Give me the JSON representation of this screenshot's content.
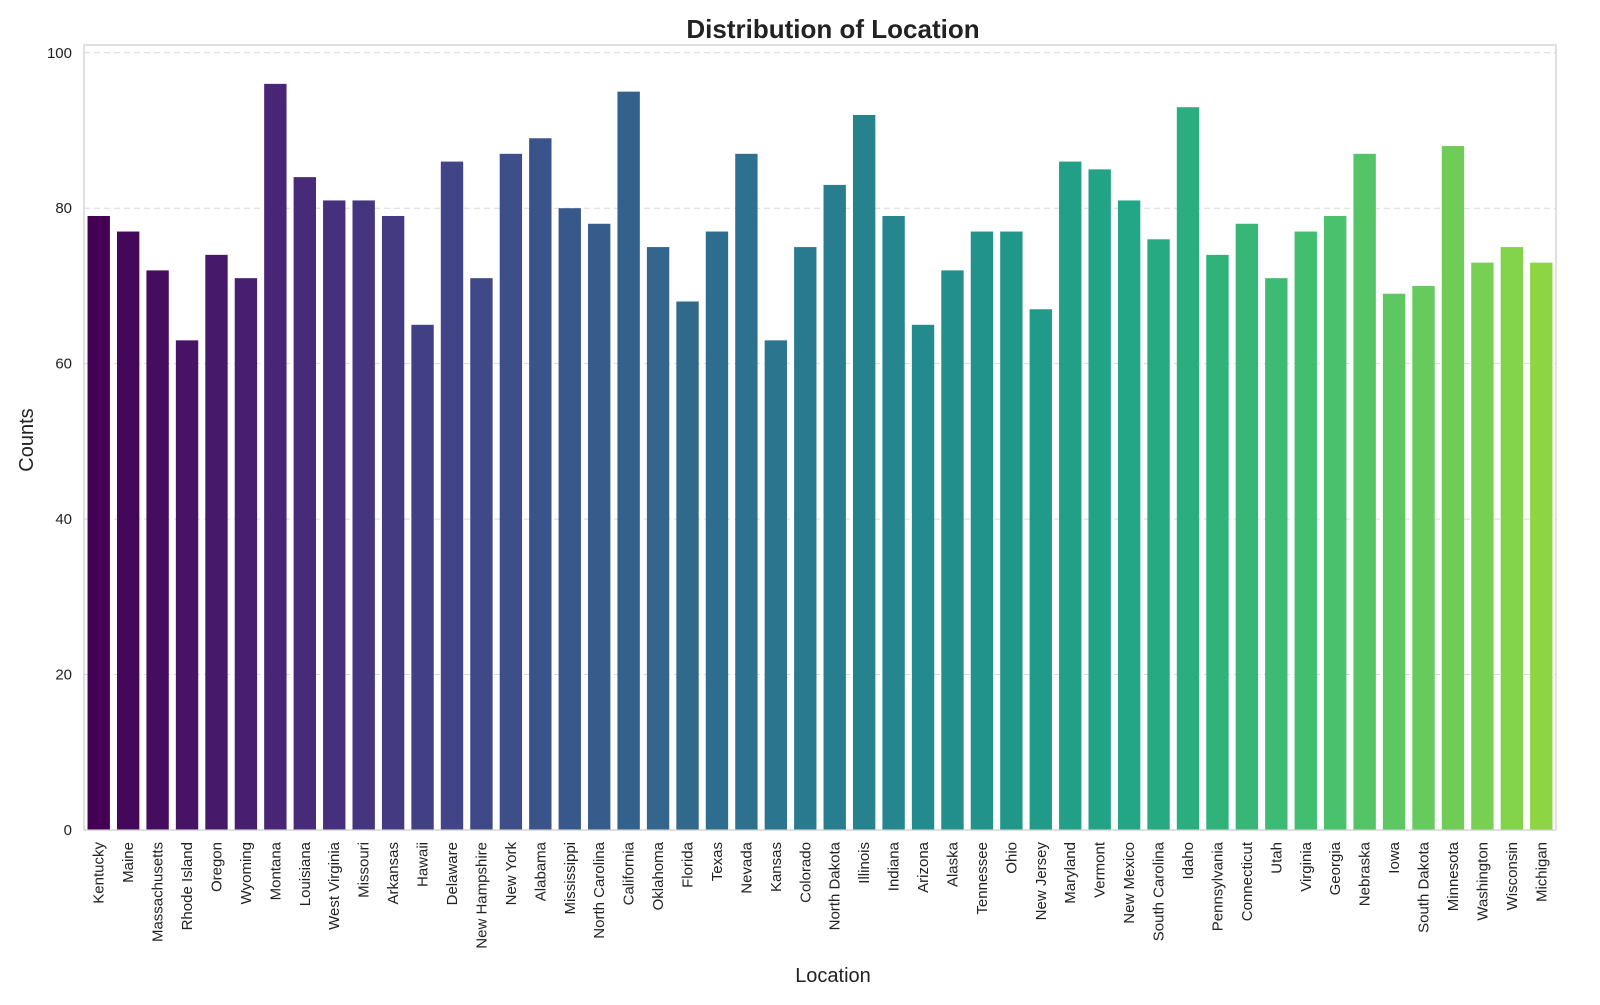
{
  "chart_data": {
    "type": "bar",
    "title": "Distribution of Location",
    "xlabel": "Location",
    "ylabel": "Counts",
    "ylim": [
      0,
      101
    ],
    "yticks": [
      0,
      20,
      40,
      60,
      80,
      100
    ],
    "grid": "horizontal dashed",
    "palette": "viridis",
    "categories": [
      "Kentucky",
      "Maine",
      "Massachusetts",
      "Rhode Island",
      "Oregon",
      "Wyoming",
      "Montana",
      "Louisiana",
      "West Virginia",
      "Missouri",
      "Arkansas",
      "Hawaii",
      "Delaware",
      "New Hampshire",
      "New York",
      "Alabama",
      "Mississippi",
      "North Carolina",
      "California",
      "Oklahoma",
      "Florida",
      "Texas",
      "Nevada",
      "Kansas",
      "Colorado",
      "North Dakota",
      "Illinois",
      "Indiana",
      "Arizona",
      "Alaska",
      "Tennessee",
      "Ohio",
      "New Jersey",
      "Maryland",
      "Vermont",
      "New Mexico",
      "South Carolina",
      "Idaho",
      "Pennsylvania",
      "Connecticut",
      "Utah",
      "Virginia",
      "Georgia",
      "Nebraska",
      "Iowa",
      "South Dakota",
      "Minnesota",
      "Washington",
      "Wisconsin",
      "Michigan"
    ],
    "values": [
      79,
      77,
      72,
      63,
      74,
      71,
      96,
      84,
      81,
      81,
      79,
      65,
      86,
      71,
      87,
      89,
      80,
      78,
      95,
      75,
      68,
      77,
      87,
      63,
      75,
      83,
      92,
      79,
      65,
      72,
      77,
      77,
      67,
      86,
      85,
      81,
      76,
      93,
      74,
      78,
      71,
      77,
      79,
      87,
      69,
      70,
      88,
      73,
      75,
      73
    ]
  }
}
